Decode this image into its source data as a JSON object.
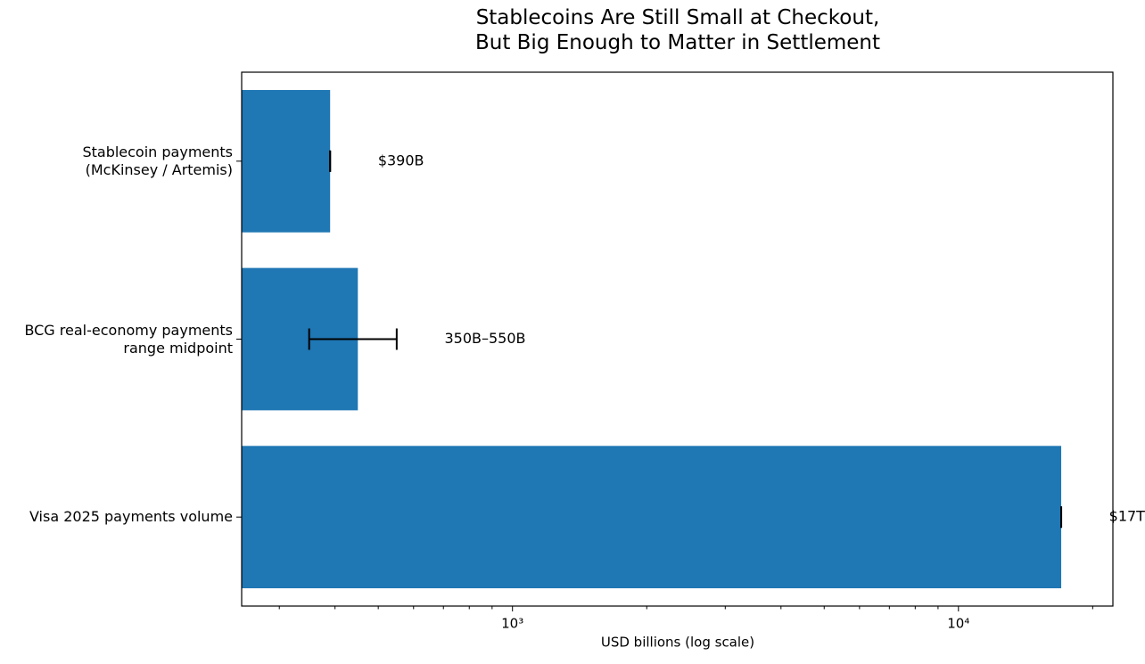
{
  "chart_data": {
    "type": "bar",
    "orientation": "horizontal",
    "title": "Stablecoins Are Still Small at Checkout,\nBut Big Enough to Matter in Settlement",
    "xlabel": "USD billions (log scale)",
    "categories": [
      "Stablecoin payments\n(McKinsey / Artemis)",
      "BCG real-economy payments\nrange midpoint",
      "Visa 2025 payments volume"
    ],
    "values": [
      390,
      450,
      17000
    ],
    "errors": [
      0,
      100,
      0
    ],
    "value_labels": [
      "$390B",
      "350B–550B",
      "$17T"
    ],
    "color": "#1f77b4",
    "xscale": "log",
    "xlim": [
      247,
      22200
    ],
    "xticks": [
      {
        "value": 1000,
        "label": "10³"
      },
      {
        "value": 10000,
        "label": "10⁴"
      }
    ],
    "xticks_minor": [
      300,
      400,
      500,
      600,
      700,
      800,
      900,
      2000,
      3000,
      4000,
      5000,
      6000,
      7000,
      8000,
      9000,
      20000
    ]
  }
}
